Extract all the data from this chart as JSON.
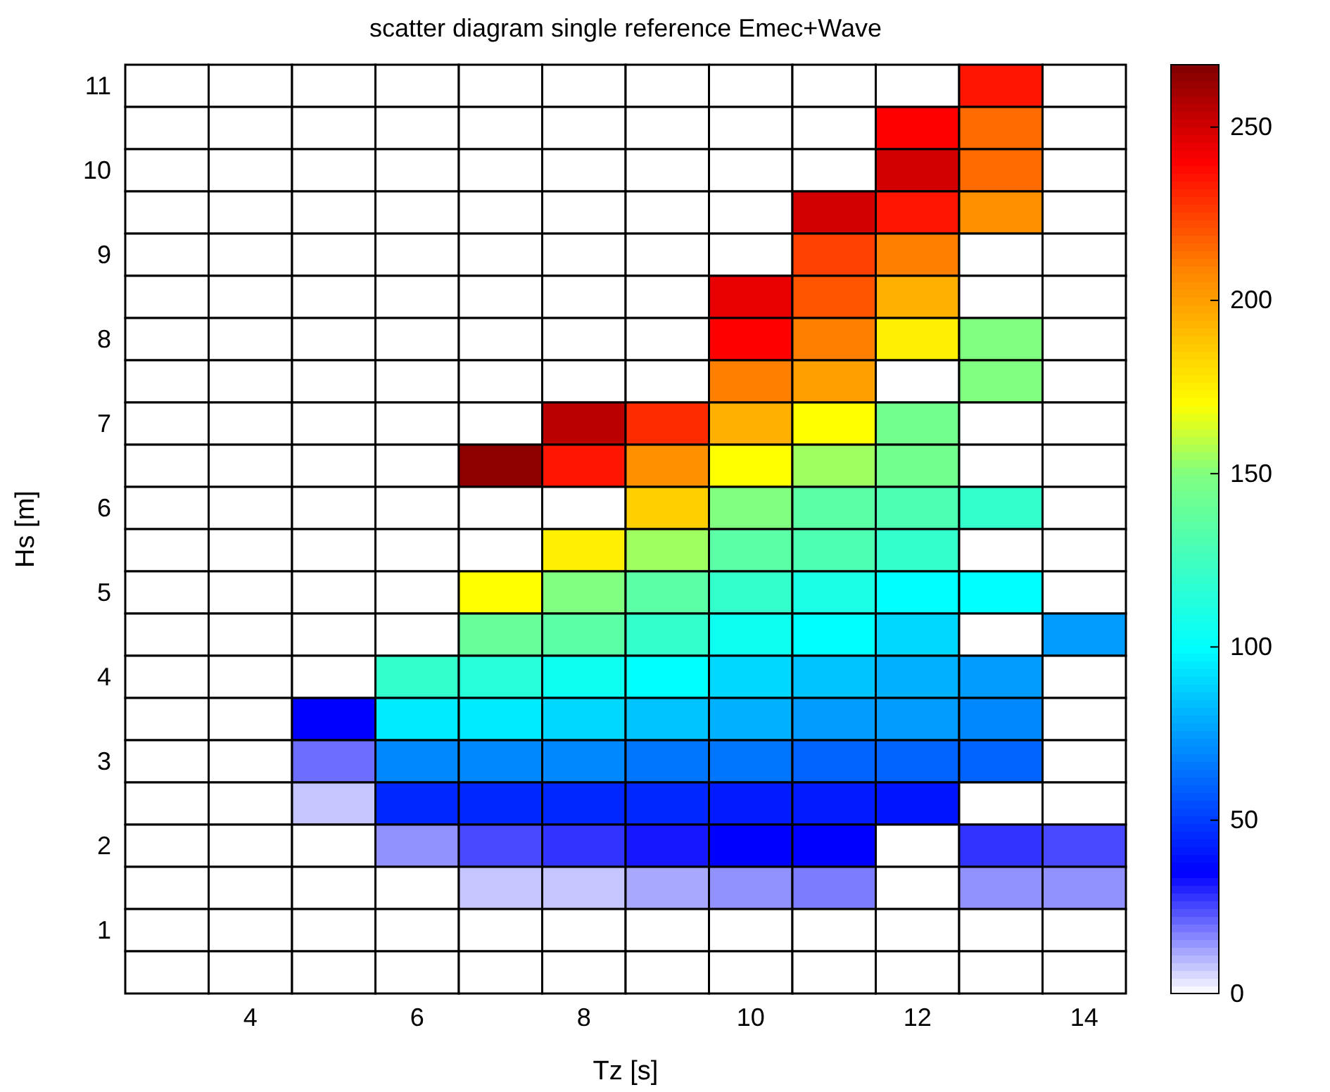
{
  "chart_data": {
    "type": "heatmap",
    "title": "scatter diagram single reference Emec+Wave",
    "xlabel": "Tz [s]",
    "ylabel": "Hs [m]",
    "categories": [
      null,
      "4",
      null,
      "6",
      null,
      "8",
      null,
      "10",
      null,
      "12",
      null,
      "14"
    ],
    "y_categories": [
      "11",
      null,
      "10",
      null,
      "9",
      null,
      "8",
      null,
      "7",
      null,
      "6",
      null,
      "5",
      null,
      "4",
      null,
      "3",
      null,
      "2",
      null,
      "1",
      null
    ],
    "cells": [
      [
        null,
        null,
        null,
        null,
        null,
        null,
        null,
        null,
        null,
        null,
        235,
        null
      ],
      [
        null,
        null,
        null,
        null,
        null,
        null,
        null,
        null,
        null,
        240,
        215,
        null
      ],
      [
        null,
        null,
        null,
        null,
        null,
        null,
        null,
        null,
        null,
        250,
        215,
        null
      ],
      [
        null,
        null,
        null,
        null,
        null,
        null,
        null,
        null,
        250,
        235,
        205,
        null
      ],
      [
        null,
        null,
        null,
        null,
        null,
        null,
        null,
        null,
        225,
        210,
        null,
        null
      ],
      [
        null,
        null,
        null,
        null,
        null,
        null,
        null,
        245,
        220,
        195,
        null,
        null
      ],
      [
        null,
        null,
        null,
        null,
        null,
        null,
        null,
        240,
        210,
        175,
        150,
        null
      ],
      [
        null,
        null,
        null,
        null,
        null,
        null,
        null,
        210,
        200,
        null,
        150,
        null
      ],
      [
        null,
        null,
        null,
        null,
        null,
        255,
        230,
        195,
        170,
        145,
        null,
        null
      ],
      [
        null,
        null,
        null,
        null,
        265,
        235,
        205,
        170,
        155,
        145,
        null,
        null
      ],
      [
        null,
        null,
        null,
        null,
        null,
        null,
        185,
        150,
        135,
        130,
        120,
        null
      ],
      [
        null,
        null,
        null,
        null,
        null,
        175,
        155,
        135,
        130,
        120,
        null,
        null
      ],
      [
        null,
        null,
        null,
        null,
        170,
        150,
        135,
        120,
        110,
        100,
        100,
        null
      ],
      [
        null,
        null,
        null,
        null,
        140,
        135,
        120,
        105,
        100,
        90,
        null,
        75
      ],
      [
        null,
        null,
        null,
        120,
        115,
        105,
        100,
        90,
        85,
        80,
        75,
        null
      ],
      [
        null,
        null,
        35,
        95,
        95,
        90,
        85,
        80,
        75,
        75,
        70,
        null
      ],
      [
        null,
        null,
        20,
        70,
        70,
        70,
        65,
        65,
        60,
        60,
        60,
        null
      ],
      [
        null,
        null,
        8,
        45,
        45,
        45,
        45,
        42,
        42,
        40,
        null,
        null
      ],
      [
        null,
        null,
        null,
        15,
        25,
        28,
        32,
        35,
        35,
        null,
        28,
        25
      ],
      [
        null,
        null,
        null,
        null,
        8,
        8,
        12,
        15,
        18,
        null,
        15,
        15
      ],
      [
        0,
        0,
        0,
        0,
        0,
        0,
        0,
        0,
        0,
        0,
        0,
        0
      ],
      [
        0,
        0,
        0,
        0,
        0,
        0,
        0,
        0,
        0,
        0,
        0,
        0
      ]
    ],
    "clim": [
      0,
      268
    ],
    "cticks": [
      0,
      50,
      100,
      150,
      200,
      250
    ]
  }
}
